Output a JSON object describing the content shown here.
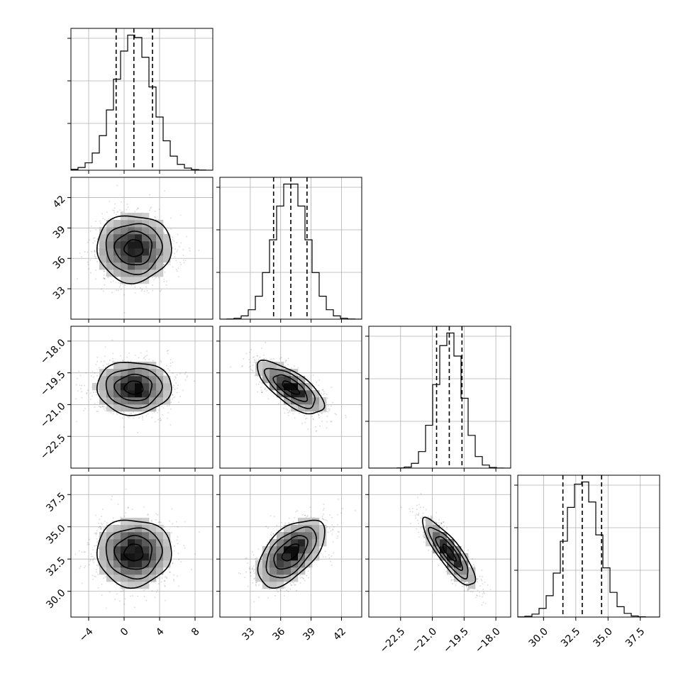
{
  "chart_data": {
    "type": "corner",
    "grid": true,
    "parameters": [
      {
        "name": "",
        "range": [
          -6,
          10
        ],
        "ticks": [
          -4,
          0,
          4,
          8
        ],
        "tick_labels": [
          "−4",
          "0",
          "4",
          "8"
        ],
        "mean": 1.1,
        "sd": 2.1,
        "quantiles": [
          -0.9,
          1.1,
          3.2
        ]
      },
      {
        "name": "",
        "range": [
          30,
          44
        ],
        "ticks": [
          33,
          36,
          39,
          42
        ],
        "tick_labels": [
          "33",
          "36",
          "39",
          "42"
        ],
        "mean": 37.0,
        "sd": 1.65,
        "quantiles": [
          35.3,
          37.0,
          38.6
        ]
      },
      {
        "name": "",
        "range": [
          -24,
          -17.3
        ],
        "ticks": [
          -22.5,
          -21.0,
          -19.5,
          -18.0
        ],
        "tick_labels": [
          "−22.5",
          "−21.0",
          "−19.5",
          "−18.0"
        ],
        "mean": -20.2,
        "sd": 0.62,
        "quantiles": [
          -20.8,
          -20.2,
          -19.6
        ]
      },
      {
        "name": "",
        "range": [
          28,
          39
        ],
        "ticks": [
          30.0,
          32.5,
          35.0,
          37.5
        ],
        "tick_labels": [
          "30.0",
          "32.5",
          "35.0",
          "37.5"
        ],
        "mean": 33.0,
        "sd": 1.3,
        "quantiles": [
          31.5,
          33.0,
          34.5
        ]
      }
    ],
    "correlations": {
      "1-0": 0.0,
      "2-0": 0.0,
      "2-1": -0.72,
      "3-0": 0.0,
      "3-1": 0.55,
      "3-2": -0.85
    },
    "contour_levels_sigma": [
      0.5,
      1.0,
      1.5,
      2.0
    ],
    "histogram_bins": 20
  }
}
